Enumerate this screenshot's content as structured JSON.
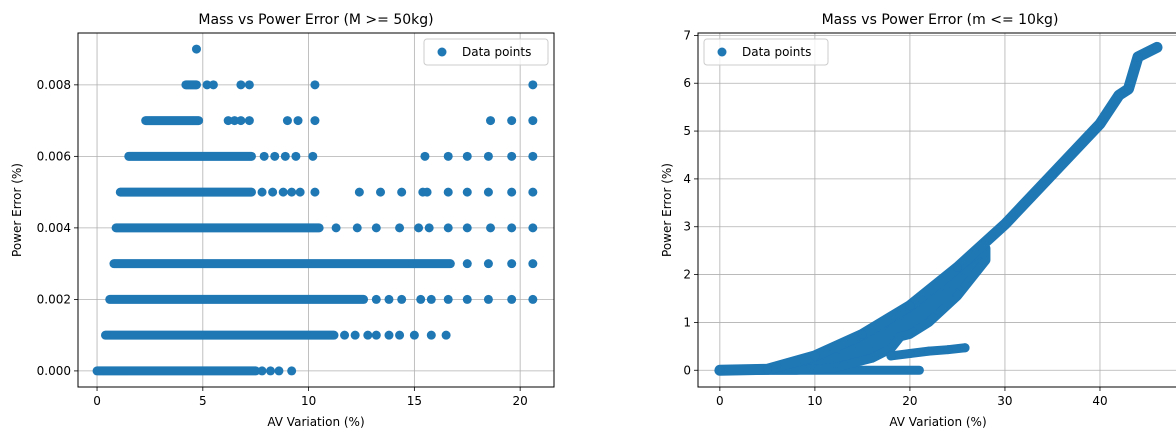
{
  "chart_data": [
    {
      "type": "scatter",
      "title": "Mass vs Power Error (M >= 50kg)",
      "xlabel": "AV Variation (%)",
      "ylabel": "Power Error (%)",
      "xlim": [
        -0.9,
        21.6
      ],
      "ylim": [
        -0.00045,
        0.00945
      ],
      "xticks": [
        0,
        5,
        10,
        15,
        20
      ],
      "yticks": [
        0,
        0.002,
        0.004,
        0.006,
        0.008
      ],
      "ytick_labels": [
        "0.000",
        "0.002",
        "0.004",
        "0.006",
        "0.008"
      ],
      "grid": true,
      "legend": "upper right",
      "point_color": "#1f77b4",
      "series": [
        {
          "name": "Data points",
          "bands": [
            {
              "y": 0.0,
              "dense": [
                0.0,
                7.5
              ],
              "sparse": [
                7.8,
                8.2,
                8.6,
                9.2
              ]
            },
            {
              "y": 0.001,
              "dense": [
                0.4,
                11.2
              ],
              "sparse": [
                11.7,
                12.2,
                12.8,
                13.2,
                13.8,
                14.3,
                15.0,
                15.8,
                16.5
              ]
            },
            {
              "y": 0.002,
              "dense": [
                0.6,
                12.6
              ],
              "sparse": [
                13.2,
                13.8,
                14.4,
                15.3,
                15.8,
                16.6,
                17.5,
                18.5,
                19.6,
                20.6
              ]
            },
            {
              "y": 0.003,
              "dense": [
                0.8,
                16.7
              ],
              "sparse": [
                17.5,
                18.5,
                19.6,
                20.6
              ]
            },
            {
              "y": 0.004,
              "dense": [
                0.9,
                10.5
              ],
              "sparse": [
                11.3,
                12.3,
                13.2,
                14.3,
                15.2,
                15.7,
                16.6,
                17.5,
                18.6,
                19.6,
                20.6
              ]
            },
            {
              "y": 0.005,
              "dense": [
                1.1,
                7.3
              ],
              "sparse": [
                7.8,
                8.3,
                8.8,
                9.2,
                9.6,
                10.3,
                12.4,
                13.4,
                14.4,
                15.4,
                15.6,
                16.6,
                17.5,
                18.5,
                19.6,
                20.6
              ]
            },
            {
              "y": 0.006,
              "dense": [
                1.5,
                7.3
              ],
              "sparse": [
                7.9,
                8.4,
                8.9,
                9.4,
                10.2,
                15.5,
                16.6,
                17.5,
                18.5,
                19.6,
                20.6
              ]
            },
            {
              "y": 0.007,
              "dense": [
                2.3,
                4.8
              ],
              "sparse": [
                6.2,
                6.5,
                6.8,
                7.2,
                9.0,
                9.5,
                10.3,
                18.6,
                19.6,
                20.6
              ]
            },
            {
              "y": 0.008,
              "dense": [
                4.2,
                4.7
              ],
              "sparse": [
                5.2,
                5.5,
                6.8,
                7.2,
                10.3,
                20.6
              ]
            },
            {
              "y": 0.009,
              "dense": [],
              "sparse": [
                4.7
              ]
            }
          ]
        }
      ]
    },
    {
      "type": "scatter",
      "title": "Mass vs Power Error (m <= 10kg)",
      "xlabel": "AV Variation (%)",
      "ylabel": "Power Error (%)",
      "xlim": [
        -2.3,
        48
      ],
      "ylim": [
        -0.35,
        7.05
      ],
      "xticks": [
        0,
        10,
        20,
        30,
        40
      ],
      "yticks": [
        0,
        1,
        2,
        3,
        4,
        5,
        6,
        7
      ],
      "ytick_labels": [
        "0",
        "1",
        "2",
        "3",
        "4",
        "5",
        "6",
        "7"
      ],
      "grid": true,
      "legend": "upper left",
      "point_color": "#1f77b4",
      "series": [
        {
          "name": "Data points",
          "main_curve": [
            [
              0,
              0
            ],
            [
              5,
              0.02
            ],
            [
              10,
              0.3
            ],
            [
              15,
              0.75
            ],
            [
              20,
              1.35
            ],
            [
              25,
              2.15
            ],
            [
              30,
              3.05
            ],
            [
              35,
              4.1
            ],
            [
              40,
              5.15
            ],
            [
              42,
              5.75
            ],
            [
              43,
              5.88
            ],
            [
              44,
              6.55
            ],
            [
              46,
              6.75
            ]
          ],
          "lower_boundary": [
            [
              8,
              0
            ],
            [
              12,
              0.05
            ],
            [
              16,
              0.25
            ],
            [
              18,
              0.45
            ],
            [
              19,
              0.7
            ],
            [
              20,
              0.75
            ],
            [
              22,
              1.0
            ],
            [
              25,
              1.55
            ],
            [
              28,
              2.3
            ]
          ],
          "lower_branch": [
            [
              18,
              0.3
            ],
            [
              20,
              0.35
            ],
            [
              22,
              0.4
            ],
            [
              24,
              0.43
            ],
            [
              25.8,
              0.47
            ]
          ],
          "bottom_band": [
            [
              0,
              0
            ],
            [
              21,
              0
            ]
          ]
        }
      ]
    }
  ]
}
